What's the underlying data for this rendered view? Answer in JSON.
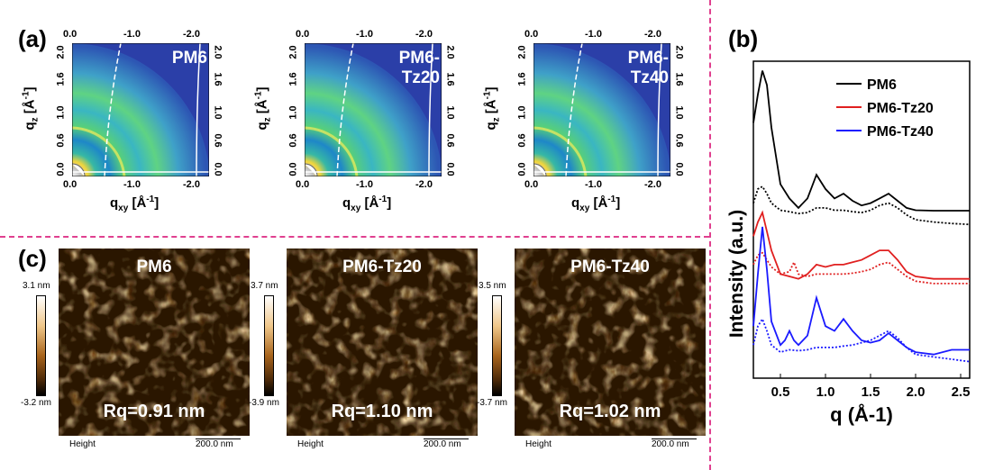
{
  "panel_labels": {
    "a": "(a)",
    "b": "(b)",
    "c": "(c)"
  },
  "giwaxs": [
    {
      "title": "PM6"
    },
    {
      "title": "PM6-Tz20"
    },
    {
      "title": "PM6-Tz40"
    }
  ],
  "giwaxs_axes": {
    "top_ticks": [
      "0.0",
      "-1.0",
      "-2.0"
    ],
    "bottom_ticks": [
      "0.0",
      "-1.0",
      "-2.0"
    ],
    "left_ticks": [
      "2.0",
      "1.6",
      "1.0",
      "0.6",
      "0.0"
    ],
    "right_ticks": [
      "2.0",
      "1.6",
      "1.0",
      "0.6",
      "0.0"
    ],
    "xlabel_main": "q",
    "xlabel_sub": "xy",
    "xlabel_unit": " [Å",
    "xlabel_sup": "-1",
    "xlabel_end": "]",
    "ylabel_main": "q",
    "ylabel_sub": "z",
    "ylabel_unit": " [Å",
    "ylabel_sup": "-1",
    "ylabel_end": "]"
  },
  "afm": [
    {
      "title": "PM6",
      "rq": "Rq=0.91 nm",
      "cb_max": "3.1 nm",
      "cb_min": "-3.2 nm"
    },
    {
      "title": "PM6-Tz20",
      "rq": "Rq=1.10 nm",
      "cb_max": "3.7 nm",
      "cb_min": "-3.9 nm"
    },
    {
      "title": "PM6-Tz40",
      "rq": "Rq=1.02 nm",
      "cb_max": "3.5 nm",
      "cb_min": "-3.7 nm"
    }
  ],
  "afm_footer": {
    "height_label": "Height",
    "scale_label": "200.0 nm"
  },
  "colors": {
    "divider": "#e0408f",
    "pm6": "#000000",
    "tz20": "#e02020",
    "tz40": "#1a1aff",
    "giwaxs_bg": "#2b3fa8"
  },
  "chart_data": {
    "type": "line",
    "xlabel": "q (Å-1)",
    "ylabel": "Intensity (a.u.)",
    "xlim": [
      0.2,
      2.6
    ],
    "xticks": [
      "0.5",
      "1.0",
      "1.5",
      "2.0",
      "2.5"
    ],
    "legend_position": "top-right",
    "series": [
      {
        "name": "PM6",
        "style": "solid",
        "color": "#000000",
        "x": [
          0.2,
          0.25,
          0.3,
          0.35,
          0.4,
          0.5,
          0.6,
          0.7,
          0.8,
          0.9,
          1.0,
          1.1,
          1.2,
          1.3,
          1.4,
          1.5,
          1.6,
          1.7,
          1.8,
          1.9,
          2.0,
          2.2,
          2.4,
          2.6
        ],
        "y": [
          0.87,
          0.93,
          0.98,
          0.95,
          0.86,
          0.74,
          0.71,
          0.69,
          0.71,
          0.76,
          0.73,
          0.71,
          0.72,
          0.705,
          0.695,
          0.7,
          0.71,
          0.72,
          0.705,
          0.69,
          0.685,
          0.684,
          0.684,
          0.684
        ]
      },
      {
        "name": "",
        "style": "dotted",
        "color": "#000000",
        "x": [
          0.2,
          0.25,
          0.3,
          0.35,
          0.4,
          0.5,
          0.6,
          0.7,
          0.8,
          0.9,
          1.0,
          1.1,
          1.2,
          1.3,
          1.4,
          1.5,
          1.6,
          1.7,
          1.8,
          1.9,
          2.0,
          2.2,
          2.4,
          2.6
        ],
        "y": [
          0.7,
          0.73,
          0.735,
          0.72,
          0.7,
          0.685,
          0.682,
          0.678,
          0.68,
          0.69,
          0.69,
          0.685,
          0.685,
          0.682,
          0.68,
          0.685,
          0.695,
          0.7,
          0.69,
          0.675,
          0.665,
          0.66,
          0.657,
          0.655
        ]
      },
      {
        "name": "PM6-Tz20",
        "style": "solid",
        "color": "#e02020",
        "x": [
          0.2,
          0.25,
          0.3,
          0.35,
          0.4,
          0.5,
          0.6,
          0.7,
          0.8,
          0.9,
          1.0,
          1.1,
          1.2,
          1.3,
          1.4,
          1.5,
          1.6,
          1.7,
          1.8,
          1.9,
          2.0,
          2.2,
          2.4,
          2.6
        ],
        "y": [
          0.63,
          0.66,
          0.68,
          0.64,
          0.6,
          0.55,
          0.545,
          0.54,
          0.55,
          0.57,
          0.565,
          0.57,
          0.57,
          0.575,
          0.58,
          0.59,
          0.6,
          0.6,
          0.58,
          0.555,
          0.545,
          0.54,
          0.54,
          0.54
        ]
      },
      {
        "name": "",
        "style": "dotted",
        "color": "#e02020",
        "x": [
          0.2,
          0.25,
          0.3,
          0.35,
          0.4,
          0.5,
          0.6,
          0.65,
          0.7,
          0.8,
          0.9,
          1.0,
          1.1,
          1.2,
          1.3,
          1.4,
          1.5,
          1.6,
          1.7,
          1.8,
          1.9,
          2.0,
          2.2,
          2.4,
          2.6
        ],
        "y": [
          0.57,
          0.59,
          0.595,
          0.58,
          0.565,
          0.55,
          0.555,
          0.575,
          0.55,
          0.545,
          0.55,
          0.55,
          0.55,
          0.55,
          0.552,
          0.555,
          0.56,
          0.57,
          0.575,
          0.56,
          0.545,
          0.535,
          0.53,
          0.53,
          0.53
        ]
      },
      {
        "name": "PM6-Tz40",
        "style": "solid",
        "color": "#1a1aff",
        "x": [
          0.2,
          0.25,
          0.3,
          0.35,
          0.4,
          0.5,
          0.55,
          0.6,
          0.65,
          0.7,
          0.8,
          0.9,
          1.0,
          1.1,
          1.2,
          1.3,
          1.4,
          1.5,
          1.6,
          1.7,
          1.8,
          1.9,
          2.0,
          2.2,
          2.4,
          2.6
        ],
        "y": [
          0.44,
          0.55,
          0.65,
          0.56,
          0.45,
          0.4,
          0.41,
          0.43,
          0.41,
          0.4,
          0.42,
          0.5,
          0.44,
          0.43,
          0.455,
          0.43,
          0.41,
          0.405,
          0.41,
          0.425,
          0.41,
          0.395,
          0.385,
          0.38,
          0.39,
          0.39
        ]
      },
      {
        "name": "",
        "style": "dotted",
        "color": "#1a1aff",
        "x": [
          0.2,
          0.25,
          0.3,
          0.35,
          0.4,
          0.5,
          0.6,
          0.7,
          0.8,
          0.9,
          1.0,
          1.1,
          1.2,
          1.3,
          1.4,
          1.5,
          1.6,
          1.7,
          1.8,
          1.9,
          2.0,
          2.2,
          2.4,
          2.6
        ],
        "y": [
          0.4,
          0.44,
          0.455,
          0.43,
          0.4,
          0.385,
          0.39,
          0.388,
          0.39,
          0.395,
          0.395,
          0.395,
          0.398,
          0.4,
          0.405,
          0.41,
          0.42,
          0.43,
          0.415,
          0.395,
          0.38,
          0.375,
          0.37,
          0.365
        ]
      }
    ]
  }
}
